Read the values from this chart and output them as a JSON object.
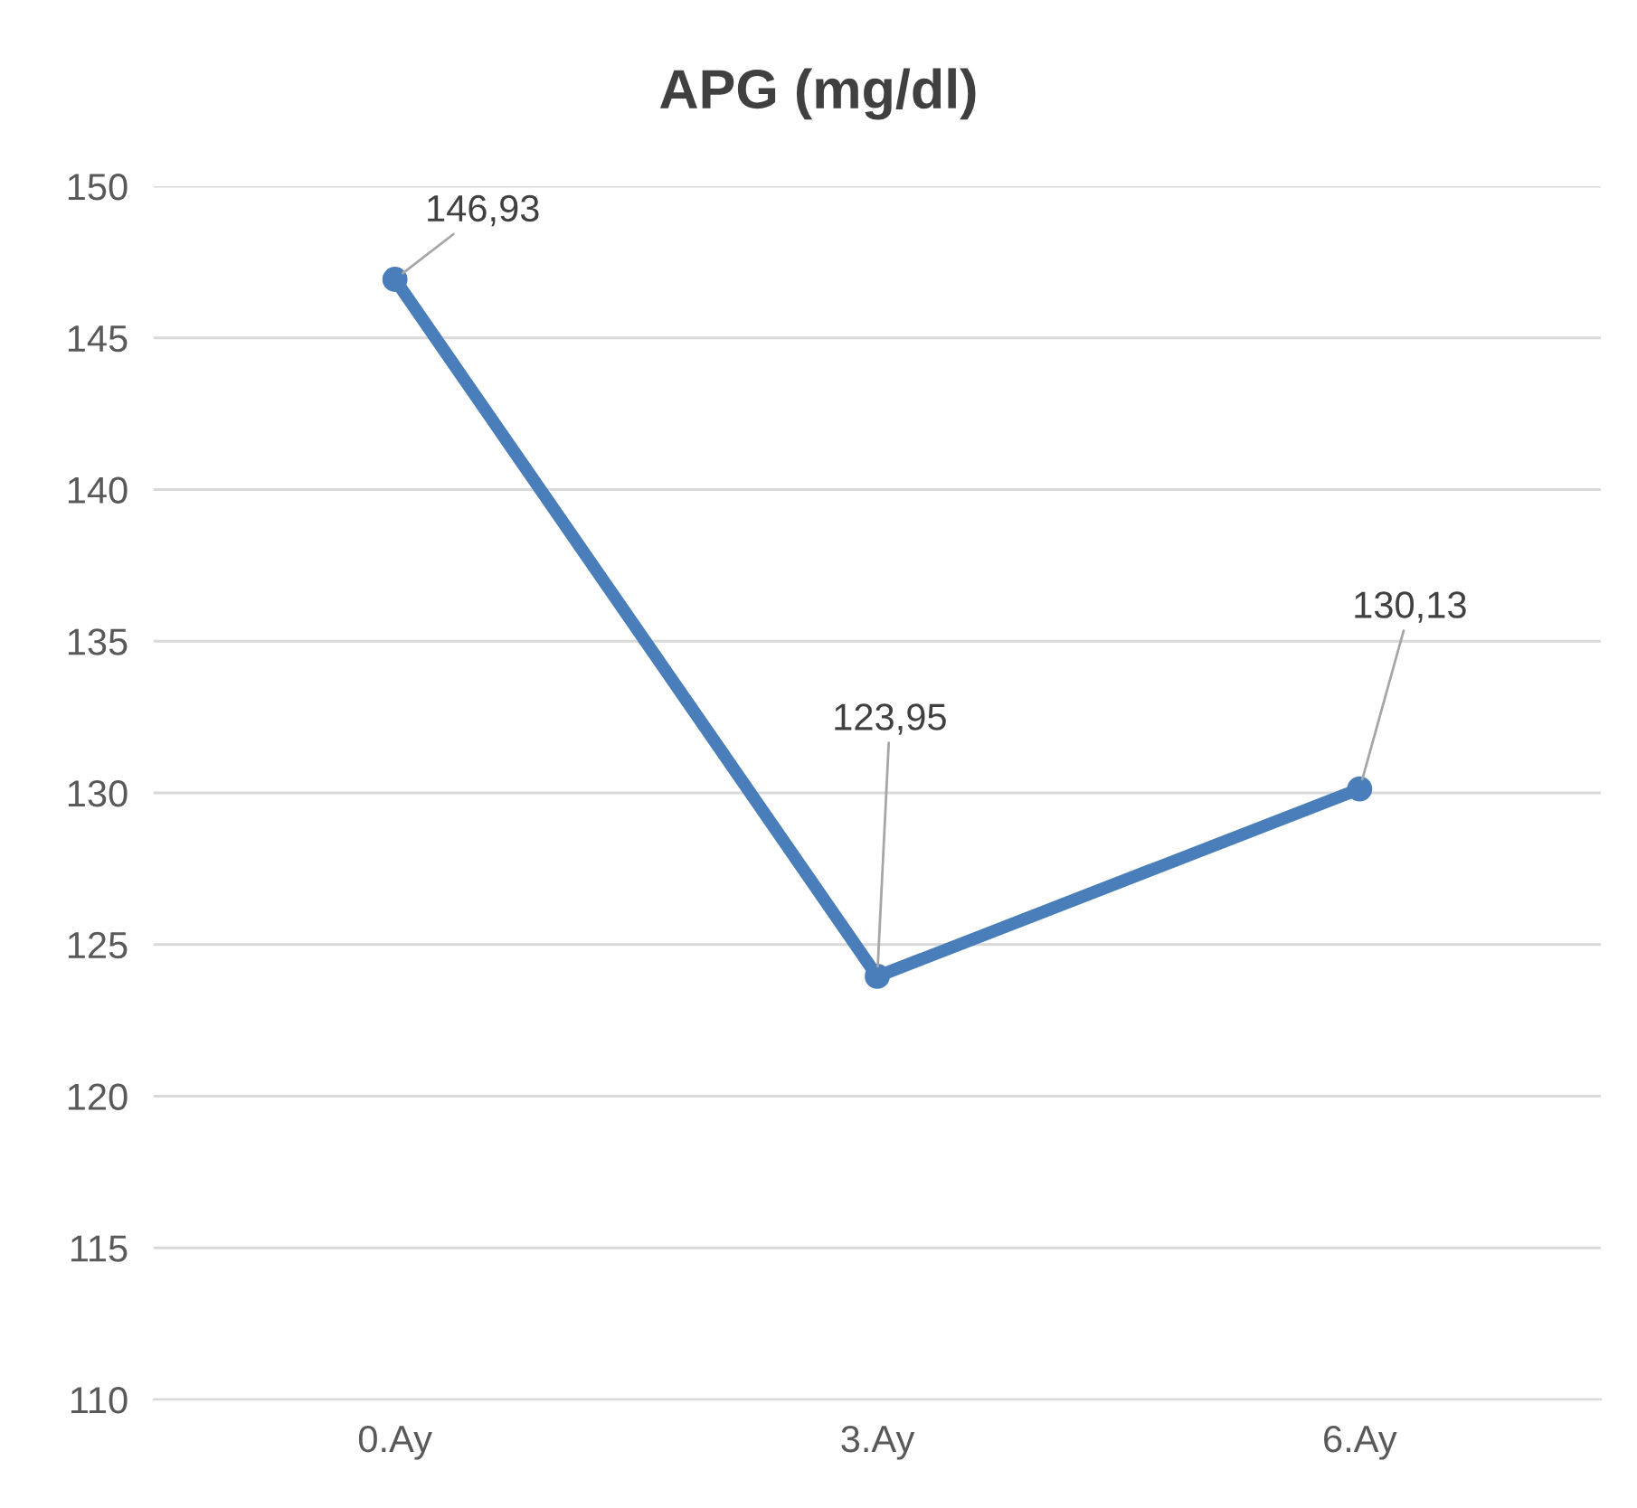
{
  "chart_data": {
    "type": "line",
    "title": "APG (mg/dl)",
    "categories": [
      "0.Ay",
      "3.Ay",
      "6.Ay"
    ],
    "series": [
      {
        "color": "#4a7ebb",
        "values": [
          146.93,
          123.95,
          130.13
        ],
        "value_labels": [
          "146,93",
          "123,95",
          "130,13"
        ]
      }
    ],
    "ylim": [
      110,
      150
    ],
    "yticks": [
      110,
      115,
      120,
      125,
      130,
      135,
      140,
      145,
      150
    ],
    "grid": "y",
    "marker": "circle",
    "line_style": "solid"
  }
}
